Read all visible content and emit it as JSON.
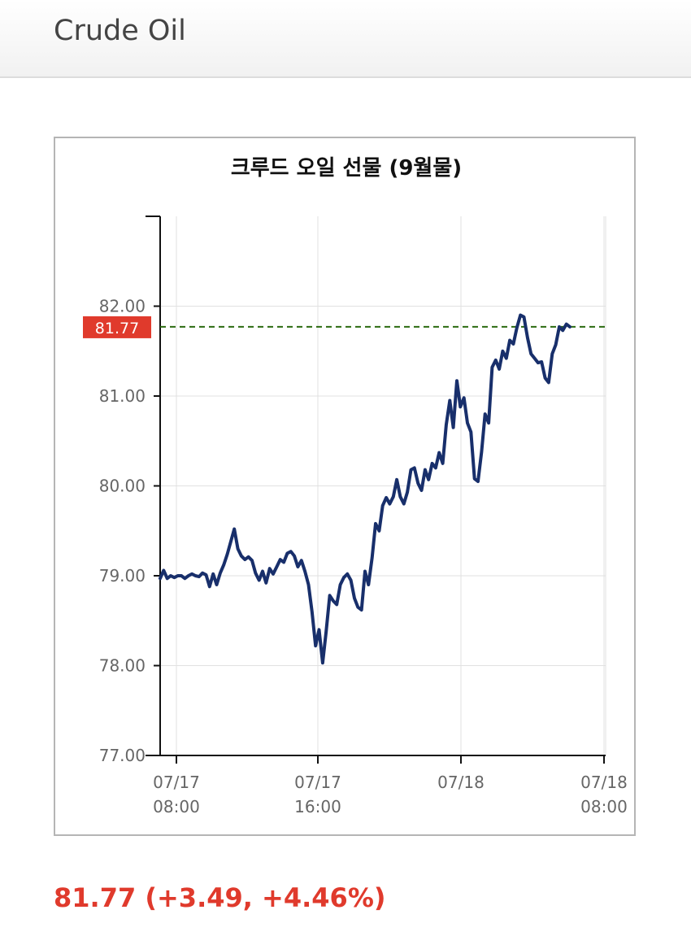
{
  "header": {
    "title": "Crude Oil"
  },
  "chart_data": {
    "type": "line",
    "title": "크루드 오일 선물 (9월물)",
    "xlabel": "",
    "ylabel": "",
    "ylim": [
      77.0,
      83.0
    ],
    "y_ticks": [
      "77.00",
      "78.00",
      "79.00",
      "80.00",
      "81.00",
      "82.00"
    ],
    "x_ticks": [
      {
        "date": "07/17",
        "time": "08:00"
      },
      {
        "date": "07/17",
        "time": "16:00"
      },
      {
        "date": "07/18",
        "time": ""
      },
      {
        "date": "07/18",
        "time": "08:00"
      }
    ],
    "grid": true,
    "current_value": 81.77,
    "current_label": "81.77",
    "series": [
      {
        "values": [
          78.97,
          79.06,
          78.97,
          79.0,
          78.98,
          79.0,
          79.0,
          78.97,
          79.0,
          79.02,
          79.0,
          78.99,
          79.03,
          79.01,
          78.88,
          79.02,
          78.9,
          79.03,
          79.12,
          79.24,
          79.38,
          79.52,
          79.3,
          79.22,
          79.18,
          79.21,
          79.17,
          79.03,
          78.95,
          79.05,
          78.92,
          79.08,
          79.02,
          79.1,
          79.18,
          79.15,
          79.25,
          79.27,
          79.22,
          79.1,
          79.17,
          79.05,
          78.9,
          78.6,
          78.22,
          78.4,
          78.03,
          78.38,
          78.78,
          78.72,
          78.68,
          78.9,
          78.98,
          79.02,
          78.95,
          78.75,
          78.65,
          78.62,
          79.05,
          78.9,
          79.2,
          79.58,
          79.5,
          79.78,
          79.87,
          79.8,
          79.88,
          80.07,
          79.88,
          79.8,
          79.93,
          80.18,
          80.2,
          80.03,
          79.95,
          80.18,
          80.07,
          80.25,
          80.2,
          80.37,
          80.25,
          80.68,
          80.95,
          80.65,
          81.17,
          80.88,
          80.98,
          80.7,
          80.6,
          80.08,
          80.05,
          80.38,
          80.8,
          80.7,
          81.32,
          81.4,
          81.3,
          81.5,
          81.42,
          81.62,
          81.58,
          81.76,
          81.9,
          81.88,
          81.65,
          81.47,
          81.42,
          81.37,
          81.38,
          81.2,
          81.15,
          81.47,
          81.57,
          81.77,
          81.73,
          81.8,
          81.77
        ]
      }
    ]
  },
  "summary": {
    "change_text": "81.77 (+3.49, +4.46%)"
  },
  "colors": {
    "line": "#182f6b",
    "reference_line": "#2b6b10",
    "price_tag": "#e03a2c",
    "change_text": "#e03a2c"
  }
}
